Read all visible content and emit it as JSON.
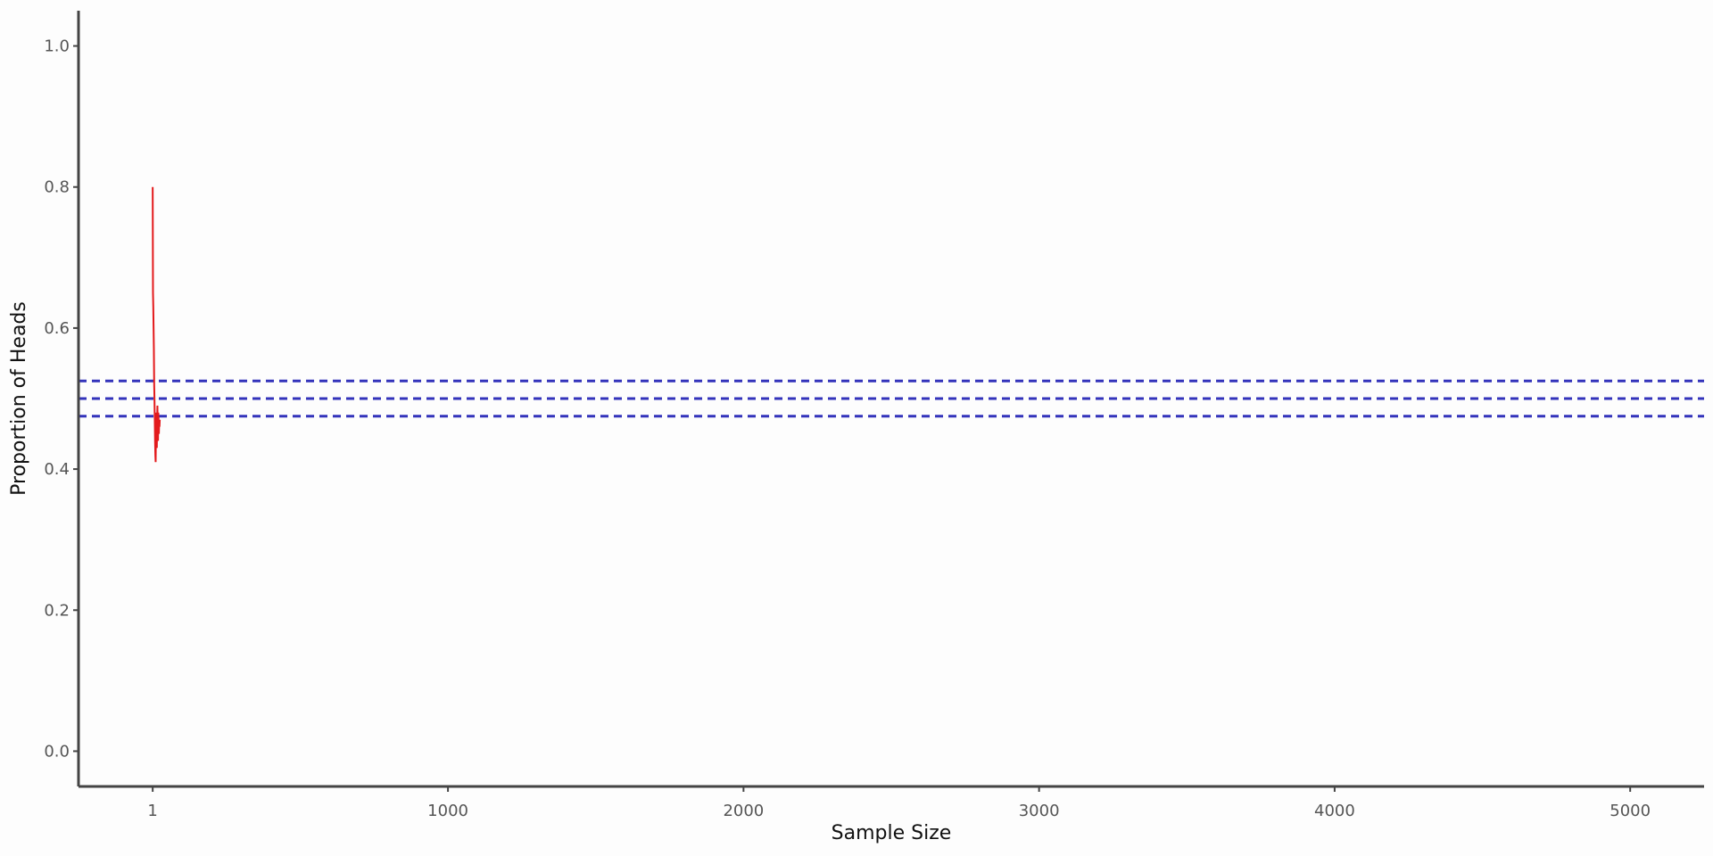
{
  "chart_data": {
    "type": "line",
    "title": "",
    "xlabel": "Sample Size",
    "ylabel": "Proportion of Heads",
    "xlim": [
      -250,
      5250
    ],
    "ylim": [
      -0.05,
      1.05
    ],
    "x_ticks": [
      1,
      1000,
      2000,
      3000,
      4000,
      5000
    ],
    "x_tick_labels": [
      "1",
      "1000",
      "2000",
      "3000",
      "4000",
      "5000"
    ],
    "y_ticks": [
      0.0,
      0.2,
      0.4,
      0.6,
      0.8,
      1.0
    ],
    "y_tick_labels": [
      "0.0",
      "0.2",
      "0.4",
      "0.6",
      "0.8",
      "1.0"
    ],
    "grid": false,
    "reference_lines": [
      {
        "y": 0.525,
        "style": "dashed",
        "color": "#3333bb"
      },
      {
        "y": 0.5,
        "style": "dashed",
        "color": "#3333bb"
      },
      {
        "y": 0.475,
        "style": "dashed",
        "color": "#3333bb"
      }
    ],
    "series": [
      {
        "color": "#e31a1c",
        "x": [
          1,
          2,
          3,
          4,
          5,
          6,
          7,
          8,
          9,
          10,
          11,
          12,
          13,
          14,
          15,
          16,
          17,
          18,
          19,
          20,
          21,
          22,
          23,
          24,
          25
        ],
        "y": [
          0.8,
          0.65,
          0.63,
          0.6,
          0.57,
          0.52,
          0.5,
          0.47,
          0.44,
          0.42,
          0.41,
          0.45,
          0.48,
          0.46,
          0.43,
          0.47,
          0.49,
          0.46,
          0.44,
          0.48,
          0.47,
          0.45,
          0.47,
          0.46,
          0.47
        ]
      }
    ]
  }
}
